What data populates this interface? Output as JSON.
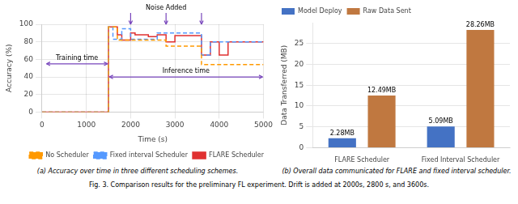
{
  "caption": "Fig. 3.  Comparison results for the preliminary FL experiment. Drift is added at 2000s, 2800 s, and 3600s.",
  "chart_data": [
    {
      "type": "line",
      "subtitle": "(a) Accuracy over time in three different scheduling schemes.",
      "x_label": "Time (s)",
      "y_label": "Accuracy (%)",
      "xlim": [
        0,
        5000
      ],
      "ylim": [
        0,
        100
      ],
      "xticks": [
        0,
        1000,
        2000,
        3000,
        4000,
        5000
      ],
      "yticks": [
        0,
        20,
        40,
        60,
        80,
        100
      ],
      "grid": true,
      "legend": "lower right",
      "series": [
        {
          "name": "No Scheduler",
          "color": "#ff9900",
          "line_style": "dashed",
          "x": [
            0,
            1500,
            1500,
            1700,
            1700,
            2000,
            2000,
            2800,
            2800,
            3200,
            3200,
            3600,
            3600,
            5000
          ],
          "values": [
            0,
            0,
            97,
            97,
            82,
            82,
            82,
            82,
            75,
            75,
            75,
            75,
            54,
            54
          ]
        },
        {
          "name": "Fixed interval Scheduler",
          "color": "#5599ff",
          "line_style": "dashed",
          "x": [
            0,
            1500,
            1500,
            1600,
            1600,
            1800,
            1800,
            2000,
            2000,
            2200,
            2200,
            2400,
            2400,
            2600,
            2600,
            2800,
            2800,
            3000,
            3000,
            3600,
            3600,
            3800,
            3800,
            4000,
            4000,
            4200,
            4200,
            5000
          ],
          "values": [
            0,
            0,
            97,
            97,
            83,
            83,
            95,
            95,
            83,
            83,
            83,
            83,
            83,
            83,
            90,
            90,
            90,
            90,
            90,
            90,
            65,
            65,
            80,
            80,
            80,
            80,
            80,
            80
          ]
        },
        {
          "name": "FLARE Scheduler",
          "color": "#e03030",
          "line_style": "solid",
          "x": [
            0,
            1500,
            1500,
            1700,
            1700,
            1800,
            1800,
            2000,
            2000,
            2100,
            2100,
            2400,
            2400,
            2600,
            2600,
            2800,
            2800,
            3000,
            3000,
            3200,
            3200,
            3500,
            3500,
            3600,
            3600,
            3800,
            3800,
            4000,
            4000,
            4200,
            4200,
            5000
          ],
          "values": [
            0,
            0,
            97,
            97,
            88,
            88,
            82,
            82,
            90,
            90,
            88,
            88,
            86,
            86,
            88,
            88,
            80,
            80,
            87,
            87,
            87,
            87,
            87,
            87,
            65,
            65,
            80,
            80,
            65,
            65,
            80,
            80
          ]
        }
      ],
      "annotations": [
        {
          "type": "arrow",
          "text": "Noise Added",
          "x": [
            2000,
            2800,
            3600
          ],
          "y": 100,
          "color": "#7744bb"
        },
        {
          "type": "span",
          "text": "Training time",
          "x": [
            100,
            1480
          ],
          "y": 55,
          "color": "#7744bb"
        },
        {
          "type": "span",
          "text": "Inference time",
          "x": [
            1520,
            4980
          ],
          "y": 40,
          "color": "#7744bb"
        }
      ]
    },
    {
      "type": "bar",
      "subtitle": "(b) Overall data communicated for FLARE and fixed interval scheduler.",
      "y_label": "Data Transferred (MB)",
      "categories": [
        "FLARE Scheduler",
        "Fixed Interval Scheduler"
      ],
      "ylim": [
        0,
        30
      ],
      "yticks": [
        0,
        5,
        10,
        15,
        20,
        25
      ],
      "grid": "y",
      "legend": "upper left",
      "data_labels": true,
      "series": [
        {
          "name": "Model Deploy",
          "color": "#4472c4",
          "values": [
            2.28,
            5.09
          ],
          "value_labels": [
            "2.28MB",
            "5.09MB"
          ]
        },
        {
          "name": "Raw Data Sent",
          "color": "#c07840",
          "values": [
            12.49,
            28.26
          ],
          "value_labels": [
            "12.49MB",
            "28.26MB"
          ]
        }
      ]
    }
  ]
}
